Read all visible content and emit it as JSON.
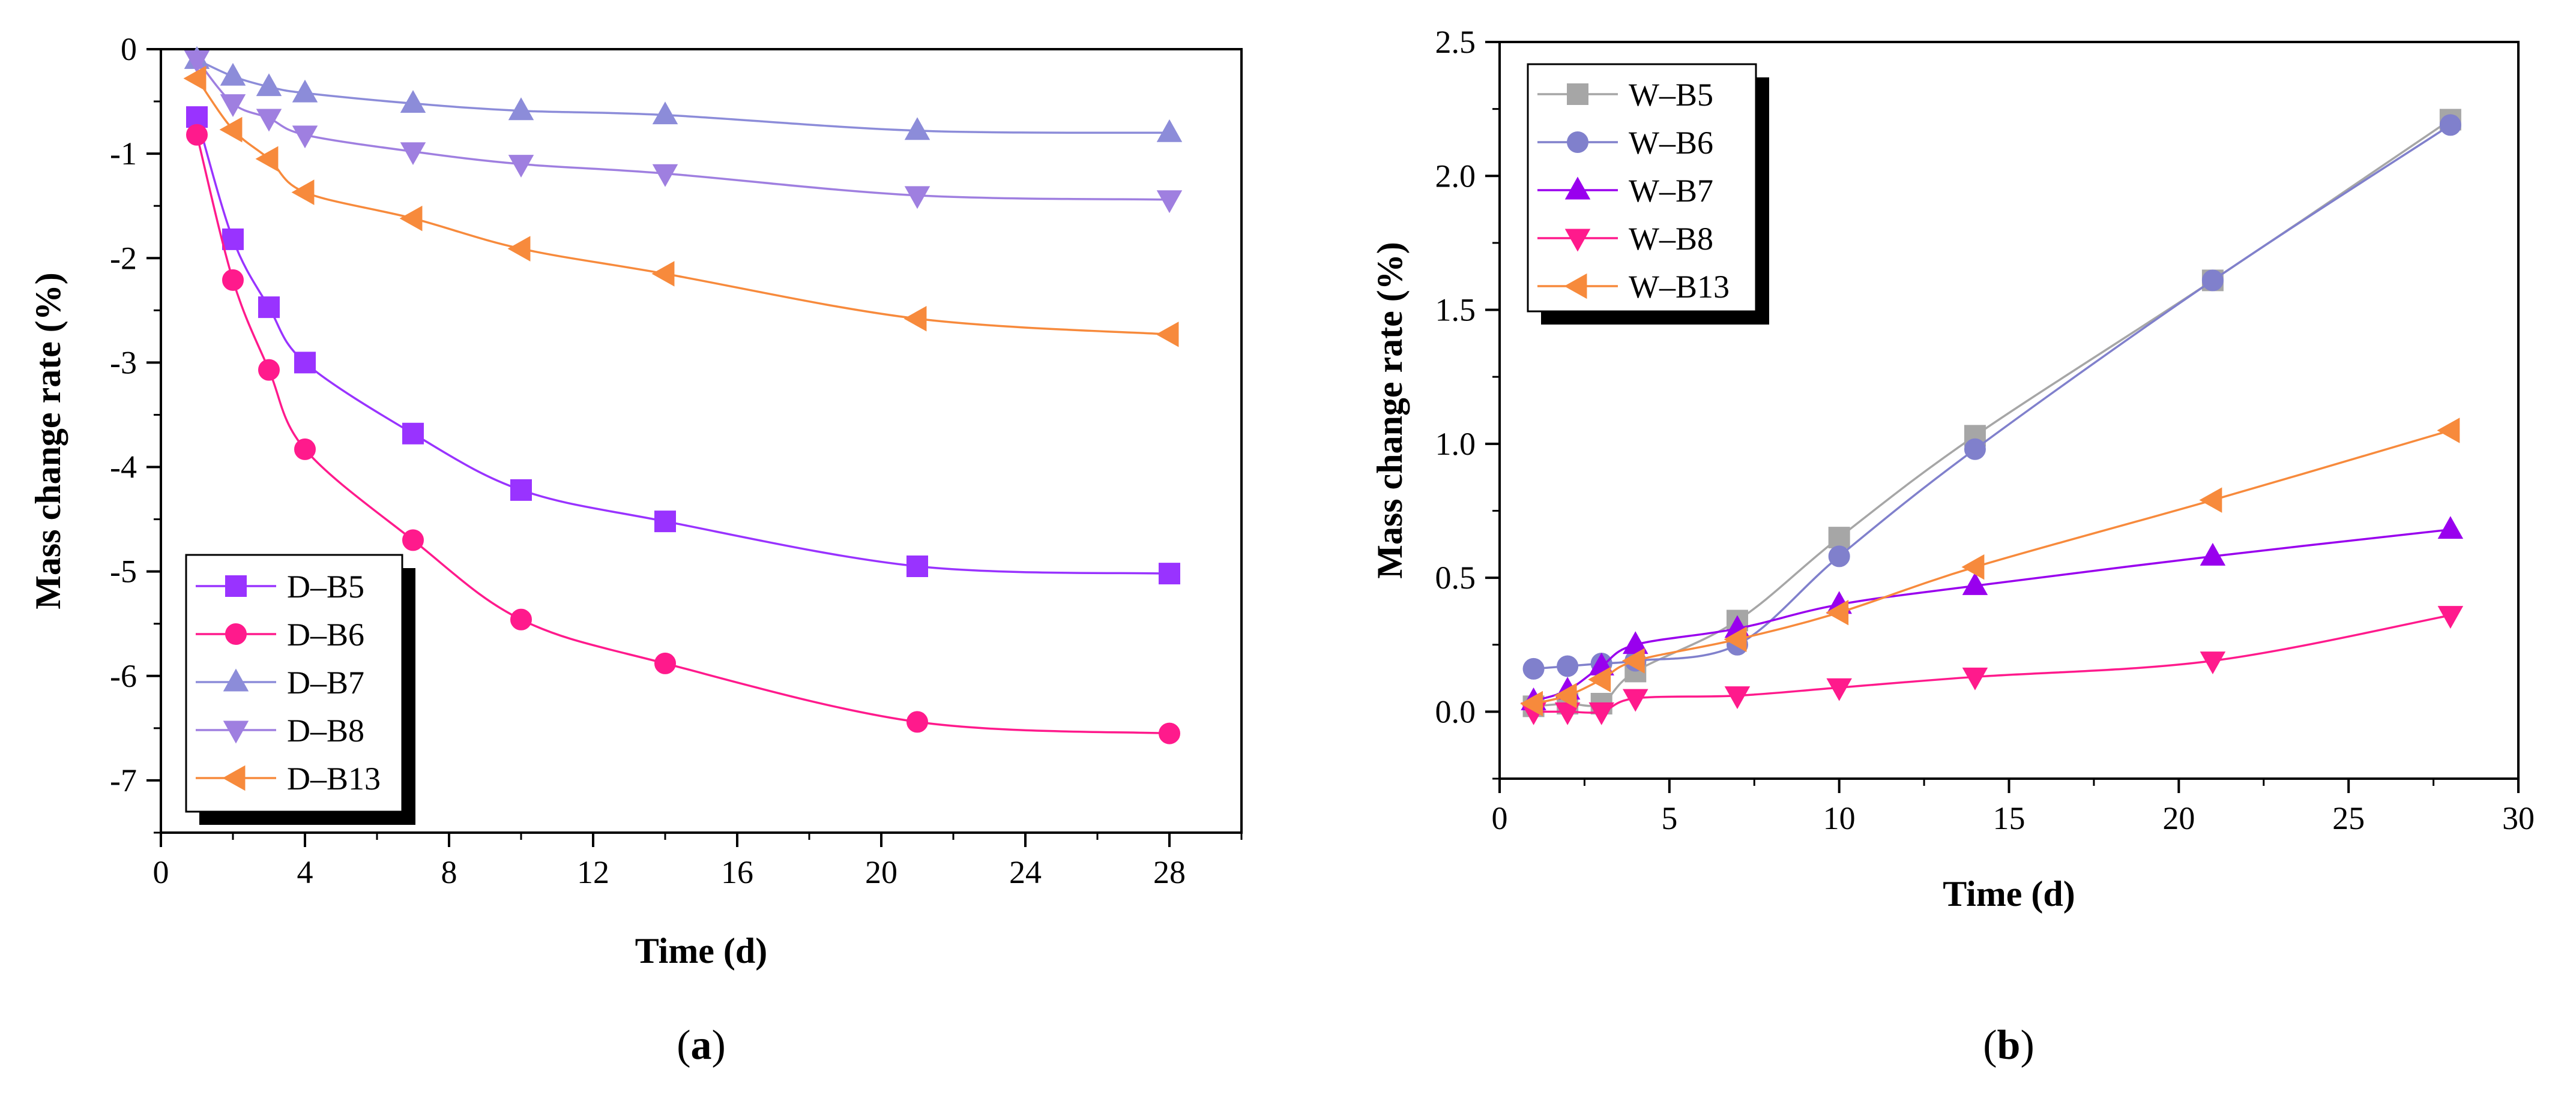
{
  "chart_data": [
    {
      "panel": "a",
      "type": "line",
      "panel_label": "a",
      "xlabel": "Time (d)",
      "ylabel": "Mass change rate (%)",
      "xlim": [
        0,
        30
      ],
      "ylim": [
        -7.5,
        0
      ],
      "x_ticks": [
        0,
        4,
        8,
        12,
        16,
        20,
        24,
        28
      ],
      "y_ticks": [
        0,
        -1,
        -2,
        -3,
        -4,
        -5,
        -6,
        -7
      ],
      "legend_position": "bottom-left",
      "grid": false,
      "series": [
        {
          "name": "D–B5",
          "marker": "square",
          "color": "#9933ff",
          "x": [
            1,
            2,
            3,
            4,
            7,
            10,
            14,
            21,
            28
          ],
          "y": [
            -0.65,
            -1.82,
            -2.47,
            -3.0,
            -3.68,
            -4.22,
            -4.52,
            -4.95,
            -5.02
          ]
        },
        {
          "name": "D–B6",
          "marker": "circle",
          "color": "#ff1a8c",
          "x": [
            1,
            2,
            3,
            4,
            7,
            10,
            14,
            21,
            28
          ],
          "y": [
            -0.82,
            -2.21,
            -3.07,
            -3.83,
            -4.7,
            -5.46,
            -5.88,
            -6.44,
            -6.55
          ]
        },
        {
          "name": "D–B7",
          "marker": "triangle-up",
          "color": "#8c8cd9",
          "x": [
            1,
            2,
            3,
            4,
            7,
            10,
            14,
            21,
            28
          ],
          "y": [
            -0.1,
            -0.26,
            -0.36,
            -0.42,
            -0.52,
            -0.59,
            -0.63,
            -0.78,
            -0.8
          ]
        },
        {
          "name": "D–B8",
          "marker": "triangle-down",
          "color": "#9f7fe0",
          "x": [
            1,
            2,
            3,
            4,
            7,
            10,
            14,
            21,
            28
          ],
          "y": [
            -0.1,
            -0.52,
            -0.66,
            -0.82,
            -0.98,
            -1.1,
            -1.19,
            -1.4,
            -1.44
          ]
        },
        {
          "name": "D–B13",
          "marker": "triangle-left",
          "color": "#f78a3c",
          "x": [
            1,
            2,
            3,
            4,
            7,
            10,
            14,
            21,
            28
          ],
          "y": [
            -0.28,
            -0.77,
            -1.05,
            -1.37,
            -1.62,
            -1.91,
            -2.15,
            -2.58,
            -2.73
          ]
        }
      ]
    },
    {
      "panel": "b",
      "type": "line",
      "panel_label": "b",
      "xlabel": "Time (d)",
      "ylabel": "Mass change rate (%)",
      "xlim": [
        0,
        30
      ],
      "ylim": [
        -0.25,
        2.5
      ],
      "x_ticks": [
        0,
        5,
        10,
        15,
        20,
        25,
        30
      ],
      "y_ticks": [
        0.0,
        0.5,
        1.0,
        1.5,
        2.0,
        2.5
      ],
      "x_tick_labels": [
        "0",
        "5",
        "10",
        "15",
        "20",
        "25",
        "30"
      ],
      "y_tick_labels": [
        "0.0",
        "0.5",
        "1.0",
        "1.5",
        "2.0",
        "2.5"
      ],
      "legend_position": "top-left",
      "grid": false,
      "series": [
        {
          "name": "W–B5",
          "marker": "square",
          "color": "#a6a6a6",
          "x": [
            1,
            2,
            3,
            4,
            7,
            10,
            14,
            21,
            28
          ],
          "y": [
            0.02,
            0.03,
            0.03,
            0.15,
            0.34,
            0.65,
            1.03,
            1.61,
            2.21
          ]
        },
        {
          "name": "W–B6",
          "marker": "circle",
          "color": "#8080cc",
          "x": [
            1,
            2,
            3,
            4,
            7,
            10,
            14,
            21,
            28
          ],
          "y": [
            0.16,
            0.17,
            0.18,
            0.19,
            0.25,
            0.58,
            0.98,
            1.61,
            2.19
          ]
        },
        {
          "name": "W–B7",
          "marker": "triangle-up",
          "color": "#9900ee",
          "x": [
            1,
            2,
            3,
            4,
            7,
            10,
            14,
            21,
            28
          ],
          "y": [
            0.04,
            0.08,
            0.17,
            0.25,
            0.31,
            0.4,
            0.47,
            0.58,
            0.68
          ]
        },
        {
          "name": "W–B8",
          "marker": "triangle-down",
          "color": "#ff1a8c",
          "x": [
            1,
            2,
            3,
            4,
            7,
            10,
            14,
            21,
            28
          ],
          "y": [
            0.0,
            0.0,
            0.0,
            0.05,
            0.06,
            0.09,
            0.13,
            0.19,
            0.36
          ]
        },
        {
          "name": "W–B13",
          "marker": "triangle-left",
          "color": "#f78a3c",
          "x": [
            1,
            2,
            3,
            4,
            7,
            10,
            14,
            21,
            28
          ],
          "y": [
            0.03,
            0.06,
            0.12,
            0.19,
            0.27,
            0.37,
            0.54,
            0.79,
            1.05
          ]
        }
      ]
    }
  ]
}
